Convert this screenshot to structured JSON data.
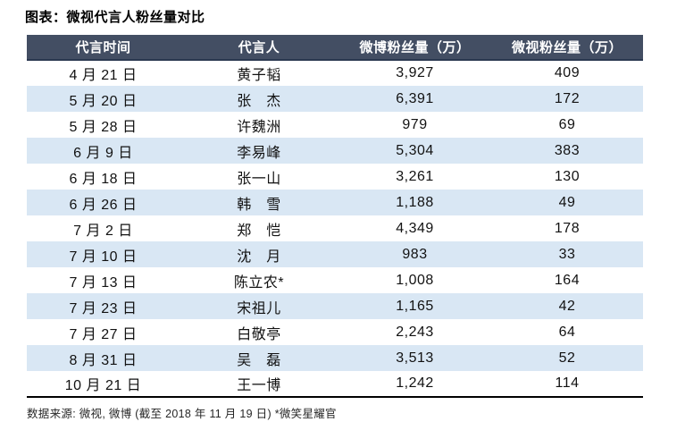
{
  "title": "图表：微视代言人粉丝量对比",
  "footer": "数据来源: 微视, 微博 (截至 2018 年 11 月 19 日) *微笑星耀官",
  "colors": {
    "header_bg": "#434e63",
    "header_border": "#2a3850",
    "alt_row": "#d9e7f4",
    "bottom_line": "#000000"
  },
  "table": {
    "columns": [
      "代言时间",
      "代言人",
      "微博粉丝量（万）",
      "微视粉丝量（万）"
    ],
    "rows": [
      {
        "date": "4 月 21 日",
        "name": "黄子韬",
        "weibo": "3,927",
        "weishi": "409"
      },
      {
        "date": "5 月 20 日",
        "name": "张　杰",
        "weibo": "6,391",
        "weishi": "172"
      },
      {
        "date": "5 月 28 日",
        "name": "许魏洲",
        "weibo": "979",
        "weishi": "69"
      },
      {
        "date": "6 月 9 日",
        "name": "李易峰",
        "weibo": "5,304",
        "weishi": "383"
      },
      {
        "date": "6 月 18 日",
        "name": "张一山",
        "weibo": "3,261",
        "weishi": "130"
      },
      {
        "date": "6 月 26 日",
        "name": "韩　雪",
        "weibo": "1,188",
        "weishi": "49"
      },
      {
        "date": "7 月 2 日",
        "name": "郑　恺",
        "weibo": "4,349",
        "weishi": "178"
      },
      {
        "date": "7 月 10 日",
        "name": "沈　月",
        "weibo": "983",
        "weishi": "33"
      },
      {
        "date": "7 月 13 日",
        "name": "陈立农*",
        "weibo": "1,008",
        "weishi": "164"
      },
      {
        "date": "7 月 23 日",
        "name": "宋祖儿",
        "weibo": "1,165",
        "weishi": "42"
      },
      {
        "date": "7 月 27 日",
        "name": "白敬亭",
        "weibo": "2,243",
        "weishi": "64"
      },
      {
        "date": "8 月 31 日",
        "name": "吴　磊",
        "weibo": "3,513",
        "weishi": "52"
      },
      {
        "date": "10 月 21 日",
        "name": "王一博",
        "weibo": "1,242",
        "weishi": "114"
      }
    ]
  },
  "chart_data": {
    "type": "table",
    "title": "图表：微视代言人粉丝量对比",
    "columns": [
      "代言时间",
      "代言人",
      "微博粉丝量（万）",
      "微视粉丝量（万）"
    ],
    "rows": [
      [
        "4 月 21 日",
        "黄子韬",
        3927,
        409
      ],
      [
        "5 月 20 日",
        "张杰",
        6391,
        172
      ],
      [
        "5 月 28 日",
        "许魏洲",
        979,
        69
      ],
      [
        "6 月 9 日",
        "李易峰",
        5304,
        383
      ],
      [
        "6 月 18 日",
        "张一山",
        3261,
        130
      ],
      [
        "6 月 26 日",
        "韩雪",
        1188,
        49
      ],
      [
        "7 月 2 日",
        "郑恺",
        4349,
        178
      ],
      [
        "7 月 10 日",
        "沈月",
        983,
        33
      ],
      [
        "7 月 13 日",
        "陈立农*",
        1008,
        164
      ],
      [
        "7 月 23 日",
        "宋祖儿",
        1165,
        42
      ],
      [
        "7 月 27 日",
        "白敬亭",
        2243,
        64
      ],
      [
        "8 月 31 日",
        "吴磊",
        3513,
        52
      ],
      [
        "10 月 21 日",
        "王一博",
        1242,
        114
      ]
    ],
    "source_note": "数据来源: 微视, 微博 (截至 2018 年 11 月 19 日) *微笑星耀官"
  }
}
